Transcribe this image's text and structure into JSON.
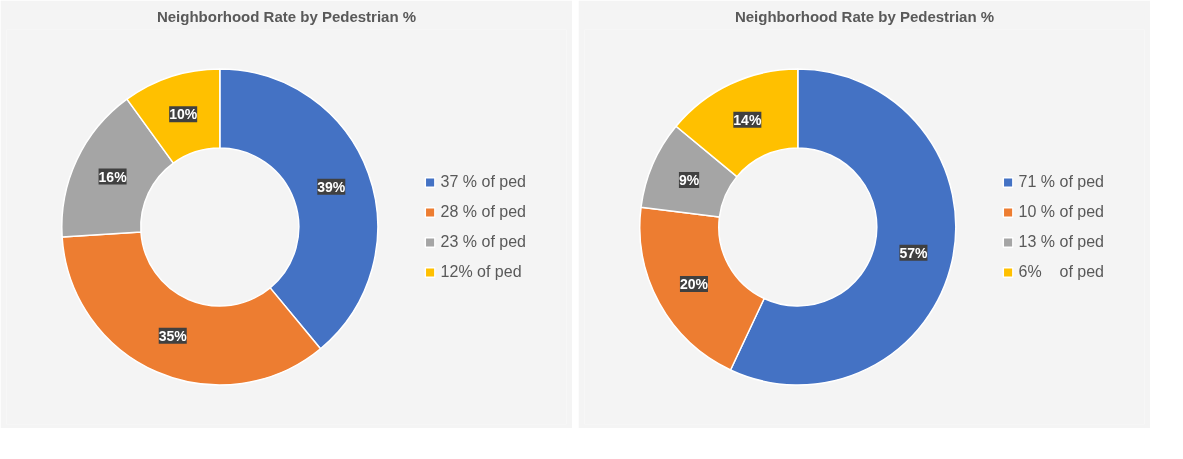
{
  "chart_data": [
    {
      "type": "donut",
      "title": "Neighborhood Rate by Pedestrian %",
      "categories": [
        "37 % of ped",
        "28 % of ped",
        "23 % of ped",
        "12% of ped"
      ],
      "values": [
        39,
        35,
        16,
        10
      ],
      "value_labels": [
        "39%",
        "35%",
        "16%",
        "10%"
      ],
      "colors": [
        "#4472c4",
        "#ed7d31",
        "#a5a5a5",
        "#ffc000"
      ],
      "legend": "right"
    },
    {
      "type": "donut",
      "title": "Neighborhood Rate by Pedestrian %",
      "categories": [
        "71 % of ped",
        "10 % of ped",
        "13 % of ped",
        "6%    of ped"
      ],
      "values": [
        57,
        20,
        9,
        14
      ],
      "value_labels": [
        "57%",
        "20%",
        "9%",
        "14%"
      ],
      "colors": [
        "#4472c4",
        "#ed7d31",
        "#a5a5a5",
        "#ffc000"
      ],
      "legend": "right"
    }
  ]
}
